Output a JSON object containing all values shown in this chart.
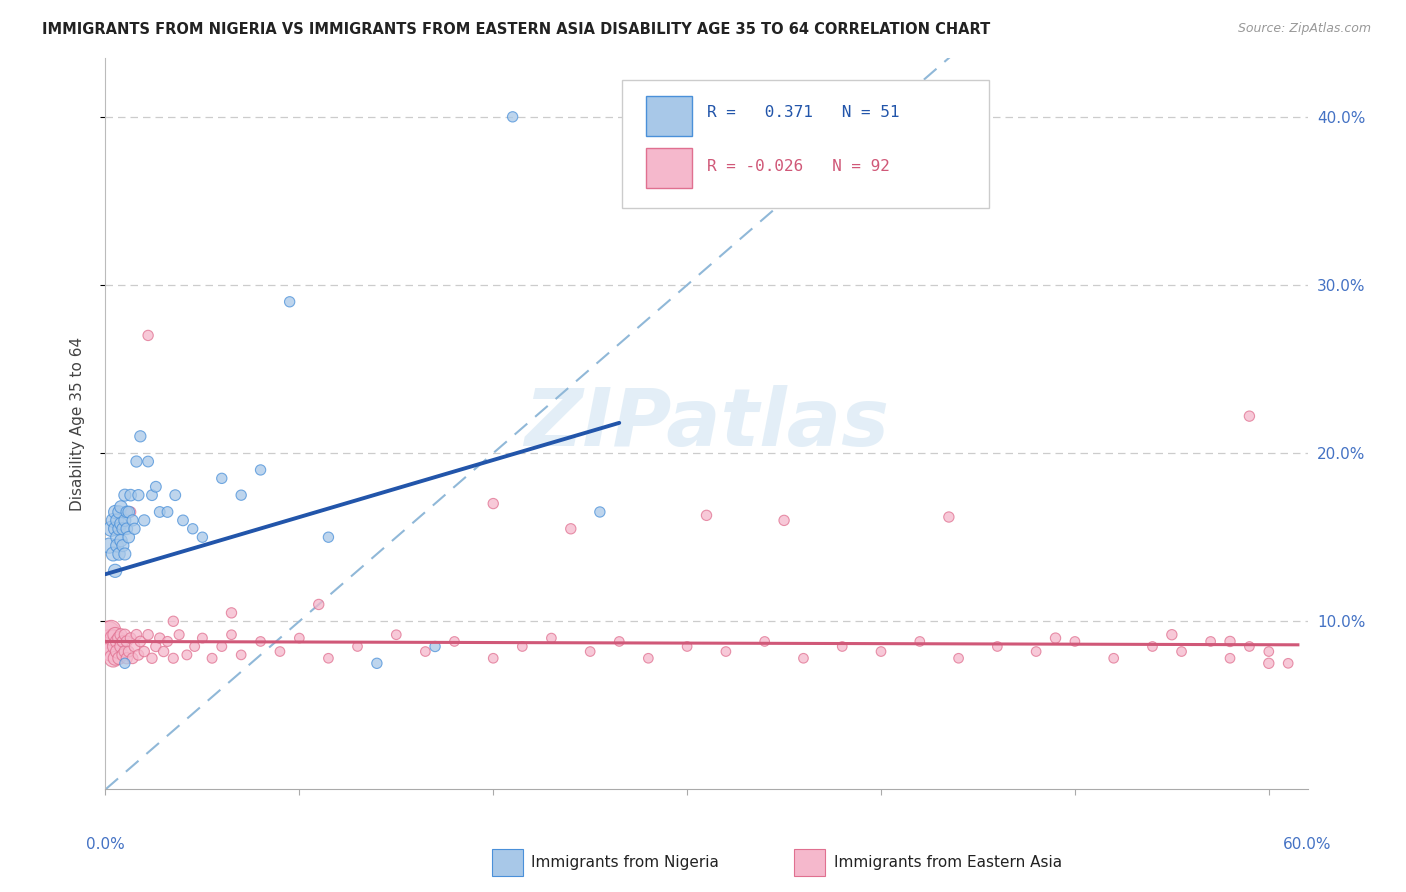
{
  "title": "IMMIGRANTS FROM NIGERIA VS IMMIGRANTS FROM EASTERN ASIA DISABILITY AGE 35 TO 64 CORRELATION CHART",
  "source": "Source: ZipAtlas.com",
  "ylabel": "Disability Age 35 to 64",
  "xlim": [
    0.0,
    0.62
  ],
  "ylim": [
    0.0,
    0.435
  ],
  "nigeria_color": "#a8c8e8",
  "nigeria_edge_color": "#4a90d9",
  "eastern_asia_color": "#f5b8cc",
  "eastern_asia_edge_color": "#e07090",
  "nigeria_line_color": "#2255aa",
  "eastern_asia_line_color": "#d05878",
  "diagonal_line_color": "#90b8d8",
  "watermark": "ZIPatlas",
  "nigeria_x": [
    0.002,
    0.003,
    0.004,
    0.004,
    0.005,
    0.005,
    0.005,
    0.006,
    0.006,
    0.006,
    0.007,
    0.007,
    0.007,
    0.008,
    0.008,
    0.008,
    0.009,
    0.009,
    0.01,
    0.01,
    0.01,
    0.011,
    0.011,
    0.012,
    0.012,
    0.013,
    0.014,
    0.015,
    0.016,
    0.017,
    0.018,
    0.02,
    0.022,
    0.024,
    0.026,
    0.028,
    0.032,
    0.036,
    0.04,
    0.045,
    0.05,
    0.06,
    0.07,
    0.08,
    0.095,
    0.115,
    0.14,
    0.17,
    0.21,
    0.255,
    0.01
  ],
  "nigeria_y": [
    0.145,
    0.155,
    0.14,
    0.16,
    0.13,
    0.155,
    0.165,
    0.15,
    0.145,
    0.16,
    0.14,
    0.155,
    0.165,
    0.148,
    0.158,
    0.168,
    0.145,
    0.155,
    0.14,
    0.16,
    0.175,
    0.155,
    0.165,
    0.15,
    0.165,
    0.175,
    0.16,
    0.155,
    0.195,
    0.175,
    0.21,
    0.16,
    0.195,
    0.175,
    0.18,
    0.165,
    0.165,
    0.175,
    0.16,
    0.155,
    0.15,
    0.185,
    0.175,
    0.19,
    0.29,
    0.15,
    0.075,
    0.085,
    0.4,
    0.165,
    0.075
  ],
  "nigeria_sizes": [
    120,
    120,
    100,
    100,
    90,
    90,
    90,
    85,
    85,
    85,
    80,
    80,
    80,
    80,
    80,
    80,
    75,
    75,
    75,
    75,
    75,
    70,
    70,
    70,
    70,
    70,
    65,
    65,
    65,
    65,
    65,
    65,
    60,
    60,
    60,
    60,
    60,
    60,
    60,
    55,
    55,
    55,
    55,
    55,
    55,
    55,
    55,
    55,
    55,
    55,
    55
  ],
  "eastern_asia_x": [
    0.001,
    0.002,
    0.003,
    0.003,
    0.004,
    0.004,
    0.005,
    0.005,
    0.005,
    0.006,
    0.006,
    0.007,
    0.007,
    0.008,
    0.008,
    0.009,
    0.009,
    0.01,
    0.01,
    0.011,
    0.011,
    0.012,
    0.013,
    0.014,
    0.015,
    0.016,
    0.017,
    0.018,
    0.02,
    0.022,
    0.024,
    0.026,
    0.028,
    0.03,
    0.032,
    0.035,
    0.038,
    0.042,
    0.046,
    0.05,
    0.055,
    0.06,
    0.065,
    0.07,
    0.08,
    0.09,
    0.1,
    0.115,
    0.13,
    0.15,
    0.165,
    0.18,
    0.2,
    0.215,
    0.23,
    0.25,
    0.265,
    0.28,
    0.3,
    0.32,
    0.34,
    0.36,
    0.38,
    0.4,
    0.42,
    0.44,
    0.46,
    0.48,
    0.5,
    0.52,
    0.54,
    0.555,
    0.57,
    0.58,
    0.59,
    0.6,
    0.61,
    0.013,
    0.24,
    0.35,
    0.49,
    0.58,
    0.035,
    0.065,
    0.11,
    0.2,
    0.31,
    0.435,
    0.55,
    0.59,
    0.022,
    0.6
  ],
  "eastern_asia_y": [
    0.092,
    0.088,
    0.082,
    0.095,
    0.078,
    0.09,
    0.085,
    0.092,
    0.078,
    0.088,
    0.082,
    0.09,
    0.078,
    0.085,
    0.092,
    0.08,
    0.088,
    0.082,
    0.092,
    0.078,
    0.088,
    0.082,
    0.09,
    0.078,
    0.085,
    0.092,
    0.08,
    0.088,
    0.082,
    0.092,
    0.078,
    0.085,
    0.09,
    0.082,
    0.088,
    0.078,
    0.092,
    0.08,
    0.085,
    0.09,
    0.078,
    0.085,
    0.092,
    0.08,
    0.088,
    0.082,
    0.09,
    0.078,
    0.085,
    0.092,
    0.082,
    0.088,
    0.078,
    0.085,
    0.09,
    0.082,
    0.088,
    0.078,
    0.085,
    0.082,
    0.088,
    0.078,
    0.085,
    0.082,
    0.088,
    0.078,
    0.085,
    0.082,
    0.088,
    0.078,
    0.085,
    0.082,
    0.088,
    0.078,
    0.085,
    0.082,
    0.075,
    0.165,
    0.155,
    0.16,
    0.09,
    0.088,
    0.1,
    0.105,
    0.11,
    0.17,
    0.163,
    0.162,
    0.092,
    0.222,
    0.27,
    0.075
  ],
  "eastern_asia_sizes": [
    380,
    280,
    200,
    180,
    160,
    140,
    120,
    110,
    100,
    95,
    90,
    85,
    80,
    80,
    75,
    75,
    70,
    70,
    65,
    65,
    65,
    60,
    60,
    60,
    60,
    58,
    58,
    58,
    56,
    56,
    55,
    55,
    55,
    55,
    52,
    52,
    52,
    50,
    50,
    50,
    50,
    50,
    48,
    48,
    48,
    48,
    48,
    48,
    48,
    48,
    48,
    48,
    48,
    48,
    48,
    48,
    48,
    48,
    48,
    48,
    48,
    48,
    48,
    48,
    48,
    48,
    48,
    48,
    48,
    48,
    48,
    48,
    48,
    48,
    48,
    48,
    48,
    55,
    55,
    55,
    55,
    55,
    55,
    55,
    55,
    55,
    55,
    55,
    55,
    55,
    55,
    55
  ]
}
